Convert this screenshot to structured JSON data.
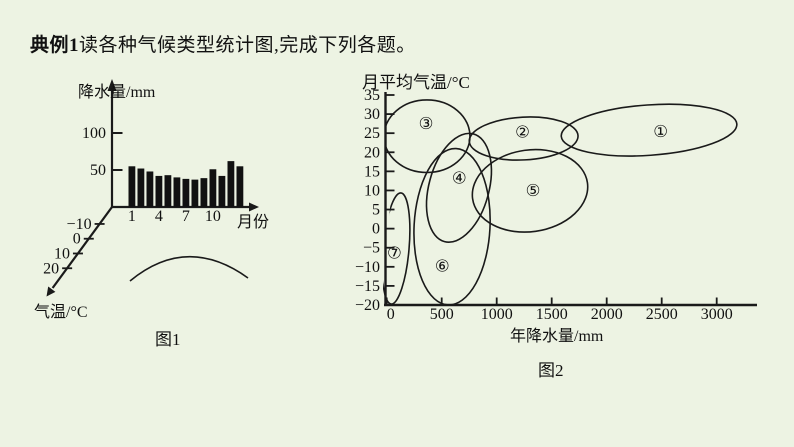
{
  "page": {
    "title_bold": "典例1",
    "title_rest": "读各种气候类型统计图,完成下列各题。",
    "background_color": "#edf3e3",
    "ink_color": "#1a1a1a"
  },
  "figure1": {
    "caption": "图1",
    "y_axis_title": "降水量/mm",
    "x_axis_title": "月份",
    "diag_axis_title": "气温/°C"
  },
  "figure2": {
    "caption": "图2",
    "y_axis_title": "月平均气温/°C",
    "x_axis_title": "年降水量/mm"
  },
  "chart_data": [
    {
      "figure": "图1",
      "type": "bar",
      "ylabel": "降水量/mm",
      "xlabel": "月份",
      "third_axis_label": "气温/°C",
      "y_ticks": [
        100,
        50
      ],
      "x_tick_labels": [
        "1",
        "4",
        "7",
        "10"
      ],
      "x_tick_bar_index": [
        0,
        3,
        6,
        9
      ],
      "diag_tick_labels": [
        "-10",
        "0",
        "10",
        "20"
      ],
      "values_mm": [
        55,
        52,
        48,
        42,
        43,
        40,
        38,
        37,
        39,
        51,
        42,
        62,
        55
      ],
      "ylim": [
        0,
        130
      ],
      "temp_curve_note": "shallow arch-shaped temperature curve peaking mid-year, drawn against the diagonal 气温/°C axis"
    },
    {
      "figure": "图2",
      "type": "scatter",
      "subtype": "labelled climate-type regions (ellipses) in precipitation–temperature space",
      "ylabel": "月平均气温/°C",
      "xlabel": "年降水量/mm",
      "xlim": [
        0,
        3100
      ],
      "ylim": [
        -20,
        35
      ],
      "x_ticks": [
        0,
        500,
        1000,
        1500,
        2000,
        2500,
        3000
      ],
      "y_ticks": [
        35,
        30,
        25,
        20,
        15,
        10,
        5,
        0,
        -5,
        -10,
        -15,
        -20
      ],
      "grid": false,
      "regions": [
        {
          "label": "①",
          "center_mm": 2385,
          "center_c": 25.8,
          "rx_mm": 800,
          "ry_c": 6.6,
          "rot": -4,
          "label_mm": 2490,
          "label_c": 25.5
        },
        {
          "label": "②",
          "center_mm": 1245,
          "center_c": 23.6,
          "rx_mm": 495,
          "ry_c": 5.6,
          "rot": -3,
          "label_mm": 1235,
          "label_c": 25.3
        },
        {
          "label": "③",
          "center_mm": 366,
          "center_c": 24.2,
          "rx_mm": 391,
          "ry_c": 9.5,
          "rot": 0,
          "label_mm": 357,
          "label_c": 27.6
        },
        {
          "label": "④",
          "center_mm": 657,
          "center_c": 10.7,
          "rx_mm": 273,
          "ry_c": 14.6,
          "rot": 15,
          "label_mm": 660,
          "label_c": 13.2
        },
        {
          "label": "⑤",
          "center_mm": 1303,
          "center_c": 9.9,
          "rx_mm": 527,
          "ry_c": 10.7,
          "rot": -8,
          "label_mm": 1330,
          "label_c": 10.0
        },
        {
          "label": "⑥",
          "center_mm": 594,
          "center_c": 0.5,
          "rx_mm": 345,
          "ry_c": 20.5,
          "rot": 3,
          "label_mm": 505,
          "label_c": -9.8
        },
        {
          "label": "⑦",
          "center_mm": 85,
          "center_c": -5.2,
          "rx_mm": 118,
          "ry_c": 14.6,
          "rot": 5,
          "label_mm": 70,
          "label_c": -6.4
        }
      ]
    }
  ]
}
